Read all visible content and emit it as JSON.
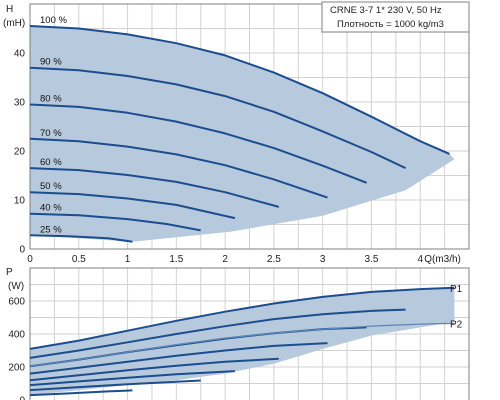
{
  "chart_data": [
    {
      "type": "line",
      "ylabel": "H",
      "yunit": "(mH)",
      "xunit": "Q(m3/h)",
      "xlim": [
        0,
        4.5
      ],
      "ylim": [
        0,
        50
      ],
      "xticks": [
        "0",
        "0.5",
        "1",
        "1.5",
        "2",
        "2.5",
        "3",
        "3.5",
        "4"
      ],
      "yticks": [
        "0",
        "10",
        "20",
        "30",
        "40"
      ],
      "info_lines": [
        "CRNE 3-7    1* 230 V, 50 Hz",
        "Плотность = 1000 kg/m3"
      ],
      "envelope_lower": [
        [
          1.05,
          1.5
        ],
        [
          2.05,
          3.5
        ],
        [
          3.0,
          6.8
        ],
        [
          3.85,
          12.0
        ],
        [
          4.35,
          18.3
        ],
        [
          4.3,
          19.4
        ]
      ],
      "series": [
        {
          "name": "100 %",
          "points": [
            [
              0,
              45.5
            ],
            [
              0.5,
              45.0
            ],
            [
              1.0,
              43.8
            ],
            [
              1.5,
              42.0
            ],
            [
              2.0,
              39.5
            ],
            [
              2.5,
              36.0
            ],
            [
              3.0,
              31.8
            ],
            [
              3.5,
              27.0
            ],
            [
              4.0,
              22.0
            ],
            [
              4.3,
              19.4
            ]
          ]
        },
        {
          "name": "90 %",
          "points": [
            [
              0,
              37.0
            ],
            [
              0.5,
              36.5
            ],
            [
              1.0,
              35.3
            ],
            [
              1.5,
              33.6
            ],
            [
              2.0,
              31.2
            ],
            [
              2.5,
              28.0
            ],
            [
              3.0,
              24.0
            ],
            [
              3.5,
              19.8
            ],
            [
              3.85,
              16.5
            ]
          ]
        },
        {
          "name": "80 %",
          "points": [
            [
              0,
              29.5
            ],
            [
              0.5,
              29.0
            ],
            [
              1.0,
              27.8
            ],
            [
              1.5,
              26.0
            ],
            [
              2.0,
              23.6
            ],
            [
              2.5,
              20.6
            ],
            [
              3.0,
              17.0
            ],
            [
              3.45,
              13.5
            ]
          ]
        },
        {
          "name": "70 %",
          "points": [
            [
              0,
              22.5
            ],
            [
              0.5,
              22.0
            ],
            [
              1.0,
              20.9
            ],
            [
              1.5,
              19.3
            ],
            [
              2.0,
              17.1
            ],
            [
              2.5,
              14.2
            ],
            [
              3.05,
              10.5
            ]
          ]
        },
        {
          "name": "60 %",
          "points": [
            [
              0,
              16.5
            ],
            [
              0.5,
              16.1
            ],
            [
              1.0,
              15.1
            ],
            [
              1.5,
              13.7
            ],
            [
              2.0,
              11.6
            ],
            [
              2.55,
              8.6
            ]
          ]
        },
        {
          "name": "50 %",
          "points": [
            [
              0,
              11.6
            ],
            [
              0.5,
              11.2
            ],
            [
              1.0,
              10.3
            ],
            [
              1.5,
              9.0
            ],
            [
              2.1,
              6.3
            ]
          ]
        },
        {
          "name": "40 %",
          "points": [
            [
              0,
              7.2
            ],
            [
              0.5,
              6.9
            ],
            [
              1.0,
              6.1
            ],
            [
              1.4,
              5.1
            ],
            [
              1.75,
              3.8
            ]
          ]
        },
        {
          "name": "25 %",
          "points": [
            [
              0,
              2.8
            ],
            [
              0.4,
              2.6
            ],
            [
              0.8,
              2.2
            ],
            [
              1.05,
              1.5
            ]
          ]
        }
      ]
    },
    {
      "type": "line",
      "ylabel": "P",
      "yunit": "(W)",
      "xlim": [
        0,
        4.5
      ],
      "ylim": [
        0,
        800
      ],
      "yticks": [
        "0",
        "200",
        "400",
        "600"
      ],
      "series_labels": [
        "P1",
        "P2"
      ],
      "envelope_lower": [
        [
          0,
          30
        ],
        [
          0.5,
          60
        ],
        [
          1.0,
          90
        ],
        [
          1.5,
          120
        ],
        [
          2.0,
          160
        ],
        [
          2.5,
          220
        ],
        [
          3.0,
          310
        ],
        [
          3.5,
          390
        ],
        [
          4.0,
          440
        ],
        [
          4.35,
          475
        ]
      ],
      "series": [
        {
          "name": "P1",
          "points": [
            [
              0,
              310
            ],
            [
              0.5,
              360
            ],
            [
              1.0,
              420
            ],
            [
              1.5,
              480
            ],
            [
              2.0,
              535
            ],
            [
              2.5,
              585
            ],
            [
              3.0,
              625
            ],
            [
              3.5,
              655
            ],
            [
              4.0,
              672
            ],
            [
              4.35,
              680
            ]
          ]
        },
        {
          "points": [
            [
              0,
              255
            ],
            [
              0.5,
              300
            ],
            [
              1.0,
              350
            ],
            [
              1.5,
              400
            ],
            [
              2.0,
              447
            ],
            [
              2.5,
              490
            ],
            [
              3.0,
              520
            ],
            [
              3.5,
              540
            ],
            [
              3.85,
              548
            ]
          ]
        },
        {
          "points": [
            [
              0,
              205
            ],
            [
              0.5,
              245
            ],
            [
              1.0,
              290
            ],
            [
              1.5,
              332
            ],
            [
              2.0,
              372
            ],
            [
              2.5,
              405
            ],
            [
              3.0,
              430
            ],
            [
              3.45,
              440
            ]
          ]
        },
        {
          "points": [
            [
              0,
              160
            ],
            [
              0.5,
              195
            ],
            [
              1.0,
              232
            ],
            [
              1.5,
              268
            ],
            [
              2.0,
              300
            ],
            [
              2.5,
              328
            ],
            [
              3.05,
              345
            ]
          ]
        },
        {
          "points": [
            [
              0,
              120
            ],
            [
              0.5,
              150
            ],
            [
              1.0,
              180
            ],
            [
              1.5,
              207
            ],
            [
              2.0,
              232
            ],
            [
              2.55,
              250
            ]
          ]
        },
        {
          "points": [
            [
              0,
              90
            ],
            [
              0.5,
              113
            ],
            [
              1.0,
              135
            ],
            [
              1.5,
              156
            ],
            [
              2.1,
              175
            ]
          ]
        },
        {
          "points": [
            [
              0,
              60
            ],
            [
              0.5,
              78
            ],
            [
              1.0,
              95
            ],
            [
              1.4,
              108
            ],
            [
              1.75,
              118
            ]
          ]
        },
        {
          "points": [
            [
              0,
              30
            ],
            [
              0.4,
              40
            ],
            [
              0.8,
              52
            ],
            [
              1.05,
              58
            ]
          ]
        },
        {
          "name": "P2",
          "points": [
            [
              0,
              205
            ],
            [
              0.5,
              245
            ],
            [
              1.0,
              290
            ],
            [
              1.5,
              335
            ],
            [
              2.0,
              375
            ],
            [
              2.5,
              405
            ],
            [
              3.0,
              430
            ],
            [
              3.5,
              448
            ],
            [
              4.0,
              460
            ],
            [
              4.35,
              465
            ]
          ]
        }
      ]
    }
  ]
}
